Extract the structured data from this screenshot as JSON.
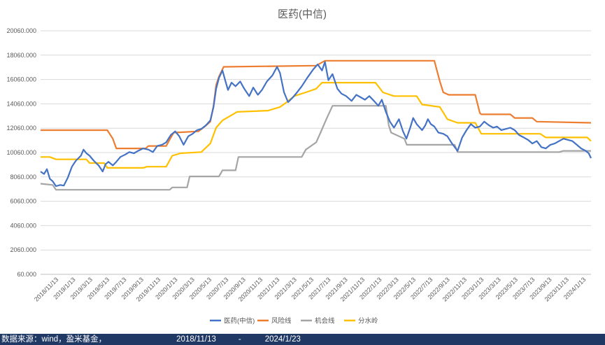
{
  "footer": {
    "source": "数据来源：wind，盈米基金，",
    "start_date": "2018/11/13",
    "separator": "-",
    "end_date": "2024/1/23"
  },
  "colors": {
    "series_medicine": "#4472c4",
    "series_risk": "#ed7d31",
    "series_opportunity": "#a5a5a5",
    "series_watershed": "#ffc000",
    "gridline": "#d9d9d9",
    "axis_text": "#595959",
    "footer_bg": "#1f3864"
  },
  "chart_data": {
    "type": "line",
    "title": "医药(中信)",
    "xlabel": "",
    "ylabel": "",
    "ylim": [
      60,
      20060
    ],
    "y_ticks": [
      "20060.000",
      "18060.000",
      "16060.000",
      "14060.000",
      "12060.000",
      "10060.000",
      "8060.000",
      "6060.000",
      "4060.000",
      "2060.000",
      "60.000"
    ],
    "x_range": [
      "2018-11-13",
      "2024-01-23"
    ],
    "x_ticks": [
      "2018/11/13",
      "2019/1/13",
      "2019/3/13",
      "2019/5/13",
      "2019/7/13",
      "2019/9/13",
      "2019/11/13",
      "2020/1/13",
      "2020/3/13",
      "2020/5/13",
      "2020/7/13",
      "2020/9/13",
      "2020/11/13",
      "2021/1/13",
      "2021/3/13",
      "2021/5/13",
      "2021/7/13",
      "2021/9/13",
      "2021/11/13",
      "2022/1/13",
      "2022/3/13",
      "2022/5/13",
      "2022/7/13",
      "2022/9/13",
      "2022/11/13",
      "2023/1/13",
      "2023/3/13",
      "2023/5/13",
      "2023/7/13",
      "2023/9/13",
      "2023/11/13",
      "2024/1/13"
    ],
    "grid": true,
    "legend_position": "bottom",
    "series": [
      {
        "name": "医药(中信)",
        "points": [
          [
            "2018-11-13",
            8500
          ],
          [
            "2018-11-25",
            8300
          ],
          [
            "2018-12-05",
            8700
          ],
          [
            "2018-12-15",
            7900
          ],
          [
            "2018-12-25",
            7700
          ],
          [
            "2019-01-05",
            7300
          ],
          [
            "2019-01-20",
            7400
          ],
          [
            "2019-02-01",
            7350
          ],
          [
            "2019-02-15",
            8000
          ],
          [
            "2019-03-01",
            8900
          ],
          [
            "2019-03-15",
            9400
          ],
          [
            "2019-04-01",
            9800
          ],
          [
            "2019-04-10",
            10300
          ],
          [
            "2019-04-20",
            10000
          ],
          [
            "2019-05-01",
            9800
          ],
          [
            "2019-05-15",
            9400
          ],
          [
            "2019-06-01",
            9000
          ],
          [
            "2019-06-15",
            8500
          ],
          [
            "2019-06-25",
            9100
          ],
          [
            "2019-07-05",
            9300
          ],
          [
            "2019-07-20",
            9000
          ],
          [
            "2019-08-01",
            9300
          ],
          [
            "2019-08-15",
            9700
          ],
          [
            "2019-09-01",
            9900
          ],
          [
            "2019-09-15",
            10100
          ],
          [
            "2019-10-01",
            10000
          ],
          [
            "2019-10-15",
            10200
          ],
          [
            "2019-11-01",
            10400
          ],
          [
            "2019-11-20",
            10300
          ],
          [
            "2019-12-05",
            10100
          ],
          [
            "2019-12-20",
            10600
          ],
          [
            "2020-01-05",
            10700
          ],
          [
            "2020-01-20",
            10900
          ],
          [
            "2020-02-05",
            11500
          ],
          [
            "2020-02-20",
            11800
          ],
          [
            "2020-03-05",
            11400
          ],
          [
            "2020-03-20",
            10700
          ],
          [
            "2020-04-05",
            11400
          ],
          [
            "2020-04-20",
            11600
          ],
          [
            "2020-05-05",
            11900
          ],
          [
            "2020-05-20",
            12000
          ],
          [
            "2020-06-05",
            12300
          ],
          [
            "2020-06-20",
            12700
          ],
          [
            "2020-07-01",
            13800
          ],
          [
            "2020-07-10",
            15300
          ],
          [
            "2020-07-20",
            16200
          ],
          [
            "2020-08-01",
            16800
          ],
          [
            "2020-08-10",
            16000
          ],
          [
            "2020-08-20",
            15200
          ],
          [
            "2020-09-01",
            15800
          ],
          [
            "2020-09-15",
            15500
          ],
          [
            "2020-10-01",
            15900
          ],
          [
            "2020-10-15",
            15300
          ],
          [
            "2020-11-01",
            14700
          ],
          [
            "2020-11-15",
            15400
          ],
          [
            "2020-12-01",
            14800
          ],
          [
            "2020-12-15",
            15200
          ],
          [
            "2021-01-01",
            15900
          ],
          [
            "2021-01-20",
            16400
          ],
          [
            "2021-02-05",
            17100
          ],
          [
            "2021-02-15",
            16600
          ],
          [
            "2021-03-01",
            15000
          ],
          [
            "2021-03-15",
            14200
          ],
          [
            "2021-04-01",
            14600
          ],
          [
            "2021-04-15",
            15000
          ],
          [
            "2021-05-01",
            15500
          ],
          [
            "2021-05-20",
            16200
          ],
          [
            "2021-06-10",
            16900
          ],
          [
            "2021-06-25",
            17300
          ],
          [
            "2021-07-10",
            16800
          ],
          [
            "2021-07-20",
            17500
          ],
          [
            "2021-08-01",
            16000
          ],
          [
            "2021-08-15",
            16500
          ],
          [
            "2021-09-01",
            15300
          ],
          [
            "2021-09-15",
            14900
          ],
          [
            "2021-10-01",
            14700
          ],
          [
            "2021-10-20",
            14300
          ],
          [
            "2021-11-05",
            14800
          ],
          [
            "2021-11-20",
            14600
          ],
          [
            "2021-12-05",
            14400
          ],
          [
            "2021-12-20",
            14700
          ],
          [
            "2022-01-05",
            14300
          ],
          [
            "2022-01-20",
            13900
          ],
          [
            "2022-02-01",
            14400
          ],
          [
            "2022-02-15",
            13400
          ],
          [
            "2022-03-01",
            12600
          ],
          [
            "2022-03-15",
            12100
          ],
          [
            "2022-04-01",
            12800
          ],
          [
            "2022-04-15",
            11800
          ],
          [
            "2022-04-27",
            11200
          ],
          [
            "2022-05-10",
            12100
          ],
          [
            "2022-05-20",
            12900
          ],
          [
            "2022-06-01",
            12400
          ],
          [
            "2022-06-20",
            11900
          ],
          [
            "2022-07-01",
            12300
          ],
          [
            "2022-07-10",
            12800
          ],
          [
            "2022-07-20",
            12400
          ],
          [
            "2022-08-01",
            12200
          ],
          [
            "2022-08-15",
            11700
          ],
          [
            "2022-09-01",
            11600
          ],
          [
            "2022-09-15",
            11400
          ],
          [
            "2022-10-01",
            10800
          ],
          [
            "2022-10-20",
            10200
          ],
          [
            "2022-11-05",
            11300
          ],
          [
            "2022-11-20",
            11900
          ],
          [
            "2022-12-05",
            12400
          ],
          [
            "2022-12-20",
            12100
          ],
          [
            "2023-01-05",
            12200
          ],
          [
            "2023-01-20",
            12600
          ],
          [
            "2023-02-05",
            12300
          ],
          [
            "2023-02-20",
            12100
          ],
          [
            "2023-03-05",
            12200
          ],
          [
            "2023-03-20",
            11900
          ],
          [
            "2023-04-05",
            12000
          ],
          [
            "2023-04-20",
            12100
          ],
          [
            "2023-05-05",
            11900
          ],
          [
            "2023-05-20",
            11500
          ],
          [
            "2023-06-05",
            11300
          ],
          [
            "2023-06-20",
            11100
          ],
          [
            "2023-07-05",
            10800
          ],
          [
            "2023-07-20",
            11000
          ],
          [
            "2023-08-05",
            10500
          ],
          [
            "2023-08-20",
            10400
          ],
          [
            "2023-09-05",
            10700
          ],
          [
            "2023-09-20",
            10800
          ],
          [
            "2023-10-05",
            11000
          ],
          [
            "2023-10-20",
            11200
          ],
          [
            "2023-11-05",
            11100
          ],
          [
            "2023-11-20",
            11000
          ],
          [
            "2023-12-05",
            10700
          ],
          [
            "2023-12-20",
            10400
          ],
          [
            "2024-01-05",
            10200
          ],
          [
            "2024-01-15",
            10000
          ],
          [
            "2024-01-23",
            9600
          ]
        ]
      },
      {
        "name": "风险线",
        "points": [
          [
            "2018-11-13",
            11900
          ],
          [
            "2019-07-01",
            11900
          ],
          [
            "2019-07-20",
            11200
          ],
          [
            "2019-08-01",
            10400
          ],
          [
            "2019-11-10",
            10400
          ],
          [
            "2019-11-20",
            10600
          ],
          [
            "2020-01-20",
            10600
          ],
          [
            "2020-02-05",
            11300
          ],
          [
            "2020-02-15",
            11700
          ],
          [
            "2020-05-10",
            11800
          ],
          [
            "2020-06-01",
            12200
          ],
          [
            "2020-06-20",
            12600
          ],
          [
            "2020-07-01",
            13900
          ],
          [
            "2020-07-10",
            15600
          ],
          [
            "2020-07-20",
            16300
          ],
          [
            "2020-08-05",
            17100
          ],
          [
            "2021-06-20",
            17200
          ],
          [
            "2021-07-20",
            17600
          ],
          [
            "2022-08-01",
            17600
          ],
          [
            "2022-08-20",
            15900
          ],
          [
            "2022-09-01",
            15000
          ],
          [
            "2022-09-20",
            14800
          ],
          [
            "2022-12-20",
            14800
          ],
          [
            "2023-01-05",
            13300
          ],
          [
            "2023-01-10",
            13200
          ],
          [
            "2023-04-20",
            13200
          ],
          [
            "2023-05-05",
            12900
          ],
          [
            "2023-07-05",
            12900
          ],
          [
            "2023-07-20",
            12600
          ],
          [
            "2024-01-23",
            12500
          ]
        ]
      },
      {
        "name": "机会线",
        "points": [
          [
            "2018-11-13",
            7500
          ],
          [
            "2018-12-25",
            7400
          ],
          [
            "2019-01-05",
            7000
          ],
          [
            "2020-02-01",
            7000
          ],
          [
            "2020-02-10",
            7200
          ],
          [
            "2020-04-01",
            7200
          ],
          [
            "2020-04-10",
            8100
          ],
          [
            "2020-07-20",
            8100
          ],
          [
            "2020-08-01",
            8600
          ],
          [
            "2020-09-15",
            8600
          ],
          [
            "2020-09-25",
            9700
          ],
          [
            "2021-05-01",
            9700
          ],
          [
            "2021-05-15",
            10300
          ],
          [
            "2021-06-20",
            10900
          ],
          [
            "2021-07-05",
            11700
          ],
          [
            "2021-07-25",
            12800
          ],
          [
            "2021-08-15",
            13900
          ],
          [
            "2022-02-15",
            13900
          ],
          [
            "2022-02-25",
            12300
          ],
          [
            "2022-03-05",
            11700
          ],
          [
            "2022-04-20",
            11200
          ],
          [
            "2022-04-28",
            10700
          ],
          [
            "2022-10-10",
            10700
          ],
          [
            "2022-10-20",
            10100
          ],
          [
            "2023-10-05",
            10100
          ],
          [
            "2023-10-20",
            10200
          ],
          [
            "2024-01-23",
            10200
          ]
        ]
      },
      {
        "name": "分水岭",
        "points": [
          [
            "2018-11-13",
            9700
          ],
          [
            "2018-12-15",
            9700
          ],
          [
            "2019-01-05",
            9500
          ],
          [
            "2019-04-20",
            9500
          ],
          [
            "2019-05-01",
            9200
          ],
          [
            "2019-06-20",
            9200
          ],
          [
            "2019-07-01",
            8800
          ],
          [
            "2019-11-01",
            8800
          ],
          [
            "2019-11-15",
            8900
          ],
          [
            "2020-01-20",
            8900
          ],
          [
            "2020-02-10",
            9800
          ],
          [
            "2020-03-10",
            10000
          ],
          [
            "2020-05-20",
            10100
          ],
          [
            "2020-06-20",
            10800
          ],
          [
            "2020-07-10",
            12100
          ],
          [
            "2020-08-01",
            12700
          ],
          [
            "2020-09-20",
            13400
          ],
          [
            "2021-01-05",
            13500
          ],
          [
            "2021-02-15",
            13800
          ],
          [
            "2021-03-05",
            14100
          ],
          [
            "2021-04-05",
            14700
          ],
          [
            "2021-05-15",
            15000
          ],
          [
            "2021-06-20",
            15300
          ],
          [
            "2021-07-10",
            15800
          ],
          [
            "2022-01-10",
            15800
          ],
          [
            "2022-02-05",
            15000
          ],
          [
            "2022-03-15",
            14700
          ],
          [
            "2022-06-01",
            14700
          ],
          [
            "2022-06-20",
            14000
          ],
          [
            "2022-08-20",
            13800
          ],
          [
            "2022-09-15",
            12800
          ],
          [
            "2022-10-20",
            12500
          ],
          [
            "2022-12-20",
            12500
          ],
          [
            "2023-01-10",
            11600
          ],
          [
            "2023-08-01",
            11600
          ],
          [
            "2023-08-20",
            11300
          ],
          [
            "2024-01-10",
            11300
          ],
          [
            "2024-01-23",
            11000
          ]
        ]
      }
    ]
  }
}
